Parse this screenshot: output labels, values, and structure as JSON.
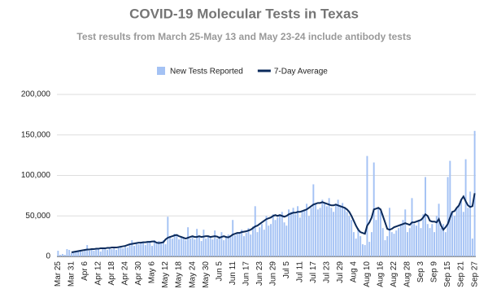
{
  "chart_data": {
    "type": "bar-line",
    "title": "COVID-19 Molecular Tests in Texas",
    "subtitle": "Test results from March 25-May 13 and May 23-24 include antibody tests",
    "categories": [
      "Mar 25",
      null,
      null,
      null,
      null,
      null,
      "Mar 31",
      null,
      null,
      null,
      null,
      null,
      "Apr 6",
      null,
      null,
      null,
      null,
      null,
      "Apr 12",
      null,
      null,
      null,
      null,
      null,
      "Apr 18",
      null,
      null,
      null,
      null,
      null,
      "Apr 24",
      null,
      null,
      null,
      null,
      null,
      "Apr 30",
      null,
      null,
      null,
      null,
      null,
      "May 6",
      null,
      null,
      null,
      null,
      null,
      "May 12",
      null,
      null,
      null,
      null,
      null,
      "May 18",
      null,
      null,
      null,
      null,
      null,
      "May 24",
      null,
      null,
      null,
      null,
      null,
      "May 30",
      null,
      null,
      null,
      null,
      null,
      "Jun 5",
      null,
      null,
      null,
      null,
      null,
      "Jun 11",
      null,
      null,
      null,
      null,
      null,
      "Jun 17",
      null,
      null,
      null,
      null,
      null,
      "Jun 23",
      null,
      null,
      null,
      null,
      null,
      "Jun 29",
      null,
      null,
      null,
      null,
      null,
      "Jul 5",
      null,
      null,
      null,
      null,
      null,
      "Jul 11",
      null,
      null,
      null,
      null,
      null,
      "Jul 17",
      null,
      null,
      null,
      null,
      null,
      "Jul 23",
      null,
      null,
      null,
      null,
      null,
      "Jul 29",
      null,
      null,
      null,
      null,
      null,
      "Aug 4",
      null,
      null,
      null,
      null,
      null,
      "Aug 10",
      null,
      null,
      null,
      null,
      null,
      "Aug 16",
      null,
      null,
      null,
      null,
      null,
      "Aug 22",
      null,
      null,
      null,
      null,
      null,
      "Aug 28",
      null,
      null,
      null,
      null,
      null,
      "Sep 3",
      null,
      null,
      null,
      null,
      null,
      "Sep 9",
      null,
      null,
      null,
      null,
      null,
      "Sep 15",
      null,
      null,
      null,
      null,
      null,
      "Sep 21",
      null,
      null,
      null,
      null,
      null,
      "Sep 27"
    ],
    "series": [
      {
        "name": "New Tests Reported",
        "type": "bar",
        "color": "#a4c2f4",
        "values": [
          7000,
          2000,
          3000,
          2000,
          9000,
          8000,
          4000,
          5000,
          6000,
          7000,
          8000,
          6000,
          9000,
          14000,
          7000,
          8000,
          7000,
          9000,
          10000,
          6000,
          11000,
          9000,
          8000,
          10000,
          9000,
          12000,
          8000,
          11000,
          13000,
          10000,
          12000,
          11000,
          14000,
          20000,
          13000,
          16000,
          15000,
          16000,
          17000,
          14000,
          18000,
          19000,
          13000,
          20000,
          17000,
          19000,
          16000,
          20000,
          15000,
          49000,
          25000,
          22000,
          28000,
          26000,
          21000,
          24000,
          23000,
          20000,
          36000,
          22000,
          25000,
          21000,
          34000,
          24000,
          19000,
          33000,
          22000,
          25000,
          24000,
          21000,
          32000,
          22000,
          25000,
          30000,
          20000,
          23000,
          27000,
          24000,
          45000,
          26000,
          28000,
          30000,
          33000,
          25000,
          29000,
          35000,
          27000,
          37000,
          62000,
          30000,
          36000,
          40000,
          33000,
          50000,
          38000,
          40000,
          52000,
          45000,
          48000,
          50000,
          55000,
          42000,
          38000,
          58000,
          55000,
          60000,
          52000,
          62000,
          48000,
          56000,
          58000,
          65000,
          50000,
          60000,
          89000,
          65000,
          58000,
          60000,
          70000,
          66000,
          62000,
          72000,
          60000,
          55000,
          65000,
          70000,
          63000,
          66000,
          60000,
          55000,
          50000,
          45000,
          30000,
          22000,
          35000,
          25000,
          15000,
          14000,
          124000,
          18000,
          30000,
          116000,
          45000,
          60000,
          55000,
          35000,
          20000,
          25000,
          60000,
          30000,
          28000,
          32000,
          35000,
          40000,
          45000,
          58000,
          30000,
          35000,
          72000,
          40000,
          38000,
          45000,
          35000,
          52000,
          98000,
          40000,
          35000,
          40000,
          30000,
          50000,
          65000,
          35000,
          40000,
          30000,
          98000,
          118000,
          55000,
          50000,
          60000,
          65000,
          70000,
          55000,
          120000,
          60000,
          80000,
          22000,
          155000
        ]
      },
      {
        "name": "7-Day Average",
        "type": "line",
        "color": "#0b2a5b",
        "values": [
          null,
          null,
          null,
          null,
          null,
          null,
          5000,
          5500,
          6000,
          6500,
          7000,
          7500,
          8000,
          8500,
          8500,
          9000,
          9000,
          9500,
          9500,
          10000,
          10000,
          10000,
          10500,
          10500,
          11000,
          11000,
          11000,
          11500,
          12000,
          12500,
          13000,
          14000,
          15000,
          15500,
          16000,
          16500,
          17000,
          17000,
          17500,
          17500,
          18000,
          18000,
          18500,
          18500,
          17000,
          16500,
          17000,
          17500,
          21000,
          23000,
          24000,
          25000,
          26000,
          26500,
          25000,
          24000,
          23000,
          22000,
          23000,
          24000,
          25000,
          24000,
          24000,
          25000,
          24000,
          24500,
          25000,
          25000,
          24000,
          24500,
          25000,
          24500,
          23000,
          24000,
          25000,
          24000,
          23500,
          25000,
          27000,
          28000,
          29000,
          29000,
          30000,
          30500,
          31000,
          32000,
          33000,
          35000,
          37000,
          38000,
          40000,
          42000,
          44000,
          46000,
          47000,
          48000,
          50000,
          51000,
          50000,
          51000,
          50000,
          49000,
          50000,
          52000,
          53000,
          54000,
          54000,
          55000,
          55000,
          56000,
          57000,
          58000,
          60000,
          62000,
          64000,
          65000,
          66000,
          66000,
          67000,
          66000,
          65000,
          64000,
          63000,
          63000,
          64000,
          63000,
          62000,
          61000,
          60000,
          58000,
          55000,
          50000,
          44000,
          38000,
          33000,
          30000,
          29000,
          28000,
          38000,
          42000,
          48000,
          58000,
          59000,
          60000,
          58000,
          50000,
          42000,
          34000,
          33000,
          34000,
          36000,
          37000,
          38000,
          39000,
          40000,
          41000,
          40000,
          39000,
          42000,
          42000,
          43000,
          44000,
          45000,
          48000,
          52000,
          50000,
          44000,
          43000,
          43000,
          42000,
          46000,
          38000,
          33000,
          36000,
          40000,
          48000,
          55000,
          56000,
          60000,
          63000,
          70000,
          74000,
          68000,
          63000,
          61000,
          62000,
          78000
        ]
      }
    ],
    "ylim": [
      0,
      200000
    ],
    "yticks": [
      0,
      {
        "value": 50000,
        "label": "50,000"
      },
      {
        "value": 100000,
        "label": "100,000"
      },
      {
        "value": 150000,
        "label": "150,000"
      },
      {
        "value": 200000,
        "label": "200,000"
      }
    ],
    "grid": true,
    "legend": "top"
  }
}
